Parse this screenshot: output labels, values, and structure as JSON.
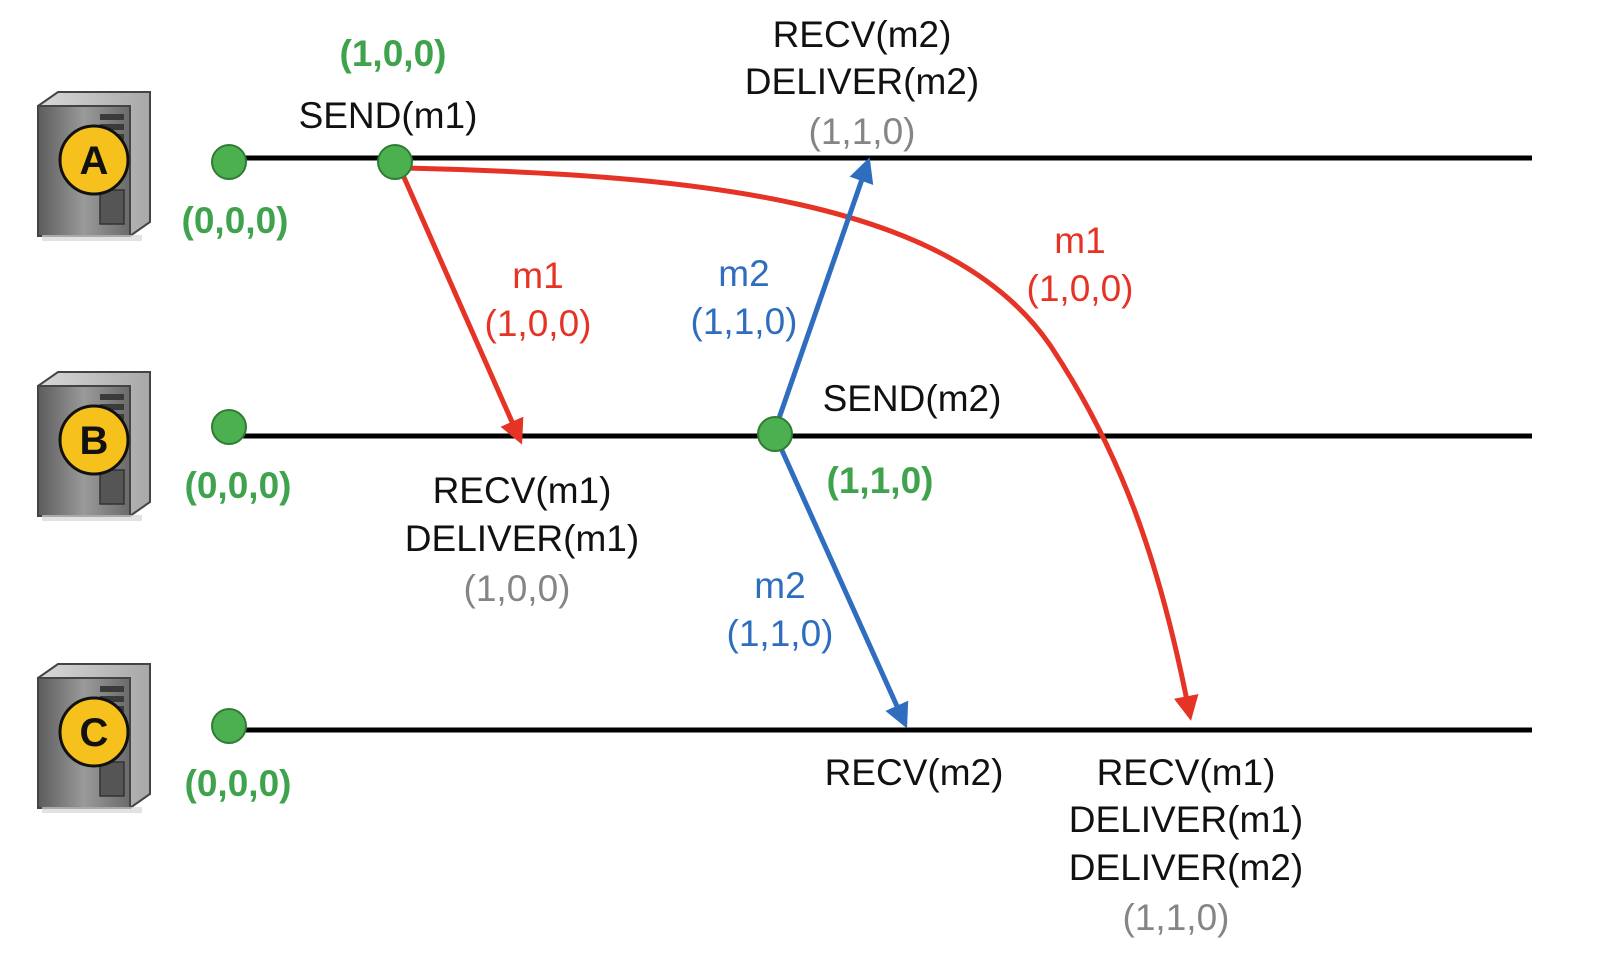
{
  "colors": {
    "timeline": "#000000",
    "event_dot": "#4caf50",
    "event_dot_stroke": "#2e7d32",
    "vector_initial": "#3fa34d",
    "vector_delivered": "#858585",
    "message_m1": "#e53325",
    "message_m2": "#2f6ebe",
    "event_text": "#111111",
    "server_badge": "#f6c11c",
    "server_body": "#8a8a8a"
  },
  "processes": [
    {
      "id": "A",
      "label": "A",
      "initial_clock": "(0,0,0)",
      "icon": "server-icon"
    },
    {
      "id": "B",
      "label": "B",
      "initial_clock": "(0,0,0)",
      "icon": "server-icon"
    },
    {
      "id": "C",
      "label": "C",
      "initial_clock": "(0,0,0)",
      "icon": "server-icon"
    }
  ],
  "events": {
    "a_send_m1": {
      "clock": "(1,0,0)",
      "lines": [
        "SEND(m1)"
      ]
    },
    "a_recv_m2": {
      "lines": [
        "RECV(m2)",
        "DELIVER(m2)"
      ],
      "clock": "(1,1,0)"
    },
    "b_recv_m1": {
      "lines": [
        "RECV(m1)",
        "DELIVER(m1)"
      ],
      "clock": "(1,0,0)"
    },
    "b_send_m2": {
      "lines": [
        "SEND(m2)"
      ],
      "clock": "(1,1,0)"
    },
    "c_recv_m2": {
      "lines": [
        "RECV(m2)"
      ]
    },
    "c_recv_m1": {
      "lines": [
        "RECV(m1)",
        "DELIVER(m1)",
        "DELIVER(m2)"
      ],
      "clock": "(1,1,0)"
    }
  },
  "messages": {
    "m1_to_b": {
      "name": "m1",
      "clock": "(1,0,0)"
    },
    "m1_to_c": {
      "name": "m1",
      "clock": "(1,0,0)"
    },
    "m2_to_a": {
      "name": "m2",
      "clock": "(1,1,0)"
    },
    "m2_to_c": {
      "name": "m2",
      "clock": "(1,1,0)"
    }
  }
}
